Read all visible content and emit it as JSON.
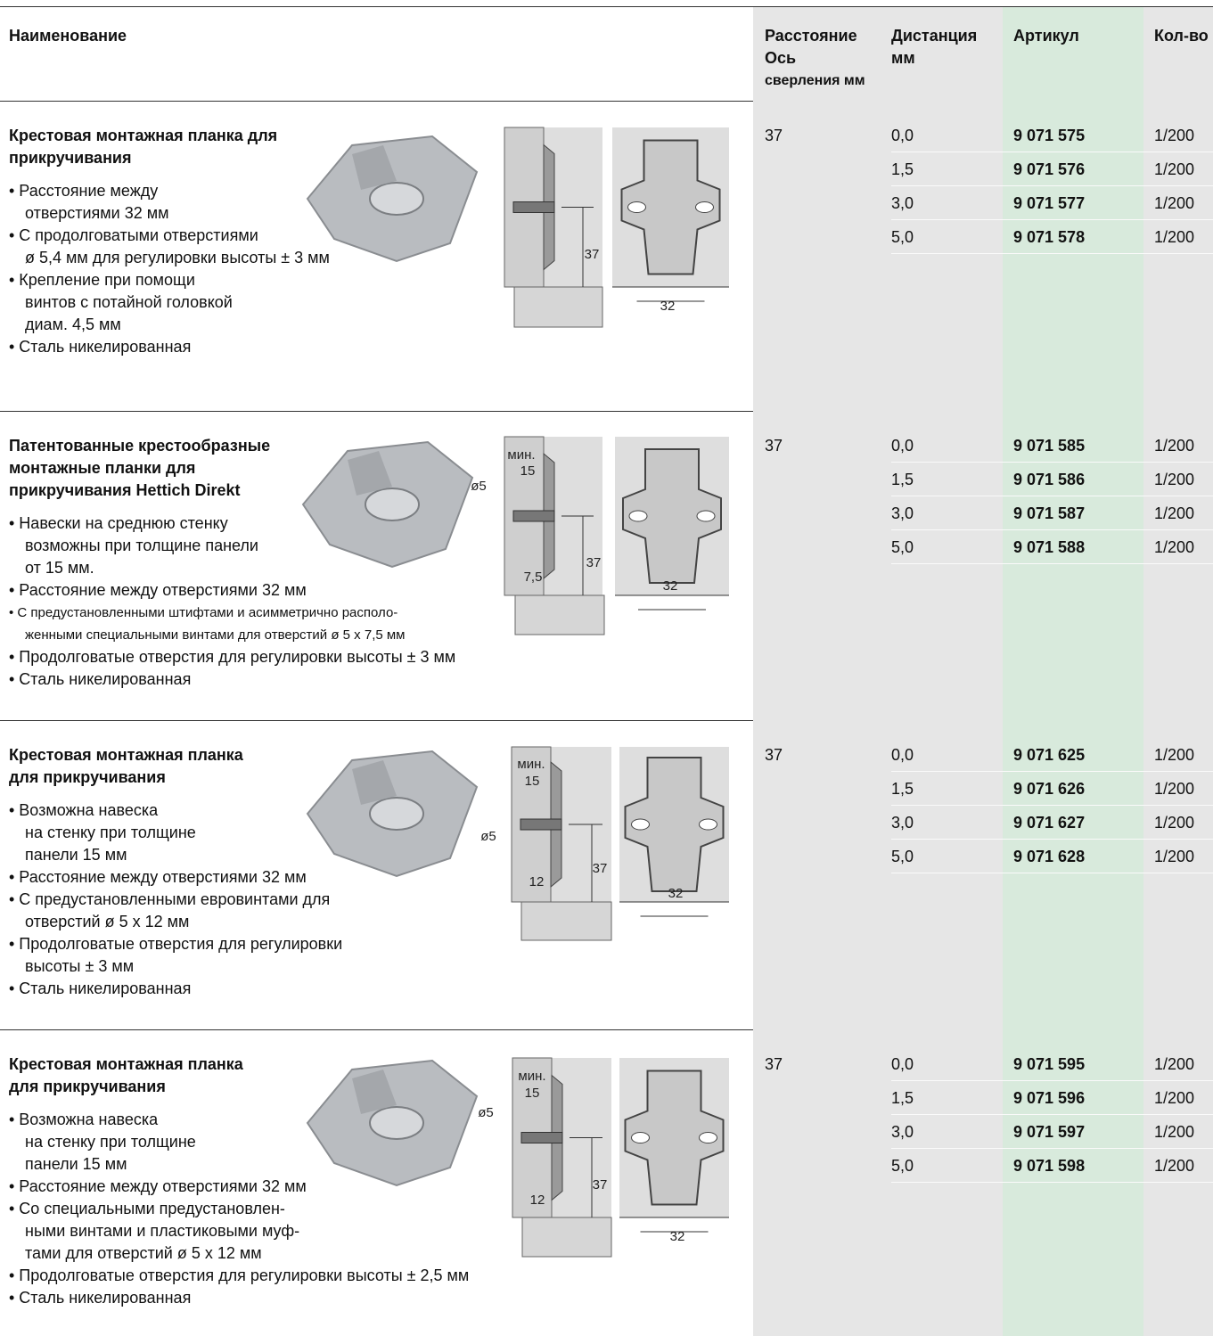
{
  "header": {
    "name": "Наименование",
    "axis": [
      "Расстояние",
      "Ось",
      "сверления мм"
    ],
    "distance": [
      "Дистанция",
      "мм"
    ],
    "article": "Артикул",
    "qty": "Кол-во"
  },
  "sections": [
    {
      "title": [
        "Крестовая монтажная планка для",
        "прикручивания"
      ],
      "bullets": [
        [
          "• Расстояние между",
          "отверстиями 32 мм"
        ],
        [
          "• С продолговатыми отверстиями",
          "ø 5,4 мм для регулировки высоты ± 3 мм"
        ],
        [
          "• Крепление при помощи",
          "винтов с потайной головкой",
          "диам. 4,5 мм"
        ],
        [
          "• Сталь никелированная"
        ]
      ],
      "drawing_labels": [
        "37",
        "32"
      ],
      "axis": "37",
      "rows": [
        [
          "0,0",
          "9 071 575",
          "1/200"
        ],
        [
          "1,5",
          "9 071 576",
          "1/200"
        ],
        [
          "3,0",
          "9 071 577",
          "1/200"
        ],
        [
          "5,0",
          "9 071 578",
          "1/200"
        ]
      ]
    },
    {
      "title": [
        "Патентованные крестообразные",
        "монтажные планки для",
        "прикручивания Hettich Direkt"
      ],
      "bullets": [
        [
          "• Навески на среднюю стенку",
          "возможны при толщине панели",
          "от 15 мм."
        ],
        [
          "• Расстояние между отверстиями 32 мм"
        ],
        [
          "• С предустановленными штифтами и асимметрично располо-",
          "женными специальными винтами для отверстий ø 5 x 7,5 мм"
        ],
        [
          "• Продолговатые отверстия для регулировки высоты ± 3 мм"
        ],
        [
          "• Сталь никелированная"
        ]
      ],
      "drawing_labels": [
        "мин.",
        "15",
        "ø5",
        "7,5",
        "37",
        "32"
      ],
      "axis": "37",
      "rows": [
        [
          "0,0",
          "9 071 585",
          "1/200"
        ],
        [
          "1,5",
          "9 071 586",
          "1/200"
        ],
        [
          "3,0",
          "9 071 587",
          "1/200"
        ],
        [
          "5,0",
          "9 071 588",
          "1/200"
        ]
      ]
    },
    {
      "title": [
        "Крестовая монтажная планка",
        "для прикручивания"
      ],
      "bullets": [
        [
          "• Возможна навеска",
          "на стенку при толщине",
          "панели 15 мм"
        ],
        [
          "• Расстояние между отверстиями 32 мм"
        ],
        [
          "• С предустановленными евровинтами для",
          "отверстий ø 5 x 12 мм"
        ],
        [
          "• Продолговатые отверстия для регулировки",
          "высоты ± 3 мм"
        ],
        [
          "• Сталь никелированная"
        ]
      ],
      "drawing_labels": [
        "мин.",
        "15",
        "ø5",
        "12",
        "37",
        "32"
      ],
      "axis": "37",
      "rows": [
        [
          "0,0",
          "9 071 625",
          "1/200"
        ],
        [
          "1,5",
          "9 071 626",
          "1/200"
        ],
        [
          "3,0",
          "9 071 627",
          "1/200"
        ],
        [
          "5,0",
          "9 071 628",
          "1/200"
        ]
      ]
    },
    {
      "title": [
        "Крестовая монтажная планка",
        "для прикручивания"
      ],
      "bullets": [
        [
          "• Возможна навеска",
          "на стенку при толщине",
          "панели 15 мм"
        ],
        [
          "• Расстояние между отверстиями 32 мм"
        ],
        [
          "• Со специальными предустановлен-",
          "ными винтами и пластиковыми муф-",
          "тами для отверстий ø 5 x 12 мм"
        ],
        [
          "• Продолговатые отверстия для регулировки высоты ± 2,5 мм"
        ],
        [
          "• Сталь никелированная"
        ]
      ],
      "drawing_labels": [
        "мин.",
        "15",
        "ø5",
        "12",
        "37",
        "32"
      ],
      "axis": "37",
      "rows": [
        [
          "0,0",
          "9 071 595",
          "1/200"
        ],
        [
          "1,5",
          "9 071 596",
          "1/200"
        ],
        [
          "3,0",
          "9 071 597",
          "1/200"
        ],
        [
          "5,0",
          "9 071 598",
          "1/200"
        ]
      ]
    }
  ]
}
